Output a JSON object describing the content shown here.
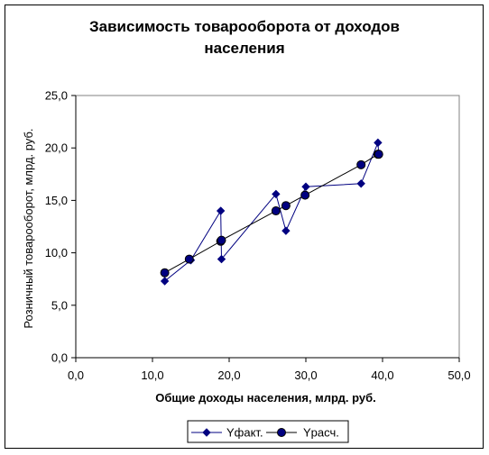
{
  "chart_data": {
    "type": "scatter",
    "title_lines": [
      "Зависимость товарооборота от доходов",
      "населения"
    ],
    "xlabel": "Общие доходы населения, млрд. руб.",
    "ylabel": "Розничный товарооборот, млрд. руб.",
    "xlim": [
      0,
      50
    ],
    "ylim": [
      0,
      25
    ],
    "x_ticks": [
      0,
      10,
      20,
      30,
      40,
      50
    ],
    "y_ticks": [
      0,
      5,
      10,
      15,
      20,
      25
    ],
    "x_tick_labels": [
      "0,0",
      "10,0",
      "20,0",
      "30,0",
      "40,0",
      "50,0"
    ],
    "y_tick_labels": [
      "0,0",
      "5,0",
      "10,0",
      "15,0",
      "20,0",
      "25,0"
    ],
    "grid": false,
    "legend_position": "bottom",
    "series": [
      {
        "name": "Yфакт.",
        "marker": "diamond",
        "color": "#000080",
        "points": [
          [
            11.6,
            7.3
          ],
          [
            15.0,
            9.3
          ],
          [
            18.9,
            14.0
          ],
          [
            19.0,
            9.4
          ],
          [
            26.1,
            15.6
          ],
          [
            27.4,
            12.1
          ],
          [
            30.0,
            16.3
          ],
          [
            37.2,
            16.6
          ],
          [
            39.4,
            20.5
          ],
          [
            39.5,
            19.4
          ]
        ]
      },
      {
        "name": "Yрасч.",
        "marker": "circle",
        "color": "#000000",
        "fill": "#000080",
        "points": [
          [
            11.6,
            8.1
          ],
          [
            14.8,
            9.4
          ],
          [
            18.9,
            11.1
          ],
          [
            19.0,
            11.2
          ],
          [
            26.1,
            14.0
          ],
          [
            27.4,
            14.5
          ],
          [
            29.9,
            15.5
          ],
          [
            37.2,
            18.4
          ],
          [
            39.4,
            19.4
          ],
          [
            39.5,
            19.4
          ]
        ]
      }
    ]
  }
}
